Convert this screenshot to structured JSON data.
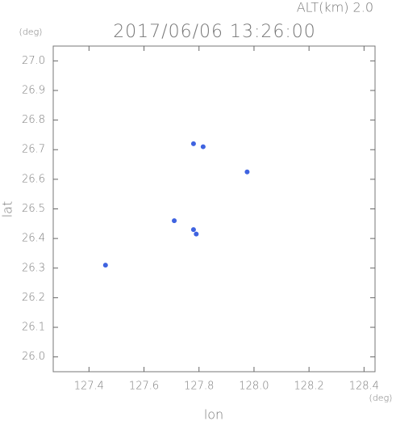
{
  "chart_data": {
    "type": "scatter",
    "title": "2017/06/06 13:26:00",
    "subtitle": "ALT(km) 2.0",
    "x_label": "lon",
    "y_label": "lat",
    "x_unit": "(deg)",
    "y_unit": "(deg)",
    "x": [
      127.46,
      127.71,
      127.78,
      127.79,
      127.78,
      127.815,
      127.975
    ],
    "y": [
      26.31,
      26.46,
      26.43,
      26.415,
      26.72,
      26.71,
      26.625
    ],
    "color": "#3f63e0",
    "xlim": [
      127.27,
      128.44
    ],
    "ylim": [
      25.95,
      27.05
    ],
    "xticks": [
      127.4,
      127.6,
      127.8,
      {
        "value": 128.0,
        "label": "128.0"
      },
      128.2,
      128.4
    ],
    "yticks": [
      {
        "value": 26.0,
        "label": "26.0"
      },
      26.1,
      26.2,
      26.3,
      26.4,
      26.5,
      26.6,
      26.7,
      26.8,
      26.9,
      {
        "value": 27.0,
        "label": "27.0"
      }
    ],
    "grid": false
  }
}
